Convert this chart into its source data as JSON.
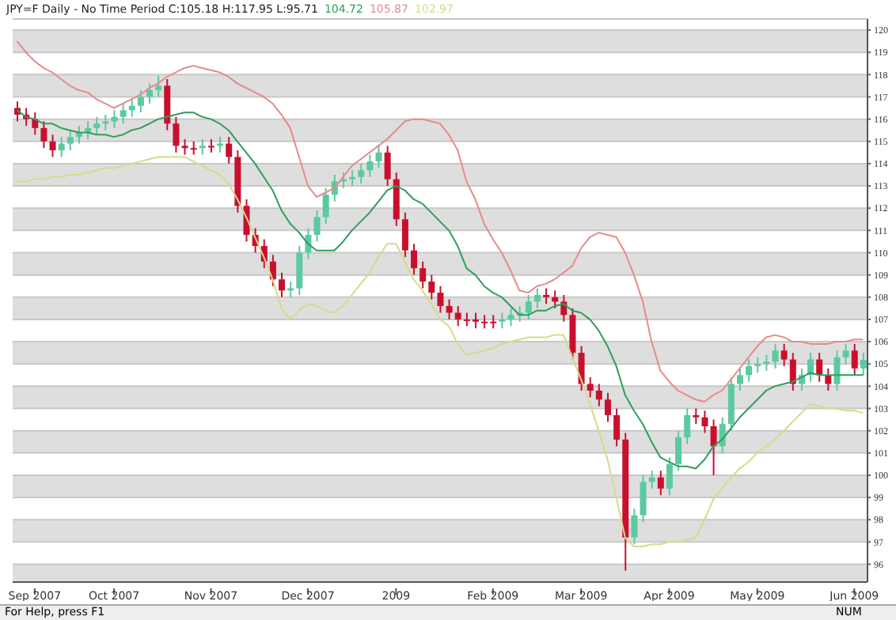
{
  "chart_data": {
    "type": "candlestick",
    "title": "JPY=F Daily - No Time Period  C:105.18 H:117.95 L:95.71",
    "legend": "top left",
    "grid": "y",
    "categories": [
      null,
      null,
      "Sep 2007",
      null,
      null,
      null,
      null,
      null,
      null,
      null,
      null,
      "Oct 2007",
      null,
      null,
      null,
      null,
      null,
      null,
      null,
      null,
      null,
      null,
      "Nov 2007",
      null,
      null,
      null,
      null,
      null,
      null,
      null,
      null,
      null,
      null,
      "Dec 2007",
      null,
      null,
      null,
      null,
      null,
      null,
      null,
      null,
      null,
      "2009",
      null,
      null,
      null,
      null,
      null,
      null,
      null,
      null,
      null,
      null,
      "Feb 2009",
      null,
      null,
      null,
      null,
      null,
      null,
      null,
      null,
      null,
      "Mar 2009",
      null,
      null,
      null,
      null,
      null,
      null,
      null,
      null,
      null,
      "Apr 2009",
      null,
      null,
      null,
      null,
      null,
      null,
      null,
      null,
      null,
      "May 2009",
      null,
      null,
      null,
      null,
      null,
      null,
      null,
      null,
      null,
      null,
      "Jun 2009",
      null
    ],
    "ylim": [
      95.2,
      120.5
    ],
    "yticks": [
      96,
      97,
      98,
      99,
      100,
      101,
      102,
      103,
      104,
      105,
      106,
      107,
      108,
      109,
      110,
      111,
      112,
      113,
      114,
      115,
      116,
      117,
      118,
      119,
      120
    ],
    "ohlc": [
      [
        116.5,
        116.8,
        115.9,
        116.2
      ],
      [
        116.2,
        116.5,
        115.7,
        116.0
      ],
      [
        116.0,
        116.3,
        115.3,
        115.6
      ],
      [
        115.6,
        115.9,
        114.7,
        115.0
      ],
      [
        115.0,
        115.3,
        114.3,
        114.6
      ],
      [
        114.6,
        115.2,
        114.3,
        114.9
      ],
      [
        114.9,
        115.5,
        114.6,
        115.2
      ],
      [
        115.2,
        115.7,
        114.9,
        115.4
      ],
      [
        115.4,
        115.9,
        115.1,
        115.6
      ],
      [
        115.6,
        116.1,
        115.3,
        115.8
      ],
      [
        115.8,
        116.2,
        115.5,
        115.9
      ],
      [
        115.9,
        116.4,
        115.6,
        116.1
      ],
      [
        116.1,
        116.7,
        115.8,
        116.4
      ],
      [
        116.4,
        116.9,
        116.1,
        116.6
      ],
      [
        116.6,
        117.3,
        116.3,
        117.0
      ],
      [
        117.0,
        117.6,
        116.7,
        117.3
      ],
      [
        117.3,
        117.95,
        117.0,
        117.5
      ],
      [
        117.5,
        117.8,
        115.5,
        115.8
      ],
      [
        115.8,
        116.1,
        114.5,
        114.8
      ],
      [
        114.8,
        115.1,
        114.4,
        114.7
      ],
      [
        114.7,
        115.0,
        114.4,
        114.7
      ],
      [
        114.7,
        115.1,
        114.4,
        114.8
      ],
      [
        114.8,
        115.1,
        114.5,
        114.8
      ],
      [
        114.8,
        115.2,
        114.5,
        114.9
      ],
      [
        114.9,
        115.2,
        114.0,
        114.3
      ],
      [
        114.3,
        114.6,
        111.8,
        112.1
      ],
      [
        112.1,
        112.4,
        110.5,
        110.8
      ],
      [
        110.8,
        111.1,
        110.0,
        110.3
      ],
      [
        110.3,
        110.6,
        109.3,
        109.6
      ],
      [
        109.6,
        109.9,
        108.5,
        108.8
      ],
      [
        108.8,
        109.1,
        108.0,
        108.3
      ],
      [
        108.3,
        108.7,
        108.0,
        108.4
      ],
      [
        108.4,
        110.3,
        108.1,
        110.0
      ],
      [
        110.0,
        111.1,
        109.7,
        110.8
      ],
      [
        110.8,
        111.9,
        110.5,
        111.6
      ],
      [
        111.6,
        112.9,
        111.3,
        112.6
      ],
      [
        112.6,
        113.5,
        112.3,
        113.2
      ],
      [
        113.2,
        113.6,
        112.9,
        113.3
      ],
      [
        113.3,
        113.7,
        113.0,
        113.4
      ],
      [
        113.4,
        114.0,
        113.1,
        113.7
      ],
      [
        113.7,
        114.4,
        113.4,
        114.1
      ],
      [
        114.1,
        114.8,
        113.8,
        114.5
      ],
      [
        114.5,
        114.8,
        113.0,
        113.3
      ],
      [
        113.3,
        113.6,
        111.2,
        111.5
      ],
      [
        111.5,
        111.8,
        109.8,
        110.1
      ],
      [
        110.1,
        110.4,
        109.0,
        109.3
      ],
      [
        109.3,
        109.6,
        108.4,
        108.7
      ],
      [
        108.7,
        109.0,
        107.9,
        108.2
      ],
      [
        108.2,
        108.5,
        107.3,
        107.6
      ],
      [
        107.6,
        107.9,
        107.0,
        107.3
      ],
      [
        107.3,
        107.6,
        106.7,
        107.0
      ],
      [
        107.0,
        107.3,
        106.7,
        107.0
      ],
      [
        107.0,
        107.3,
        106.6,
        106.9
      ],
      [
        106.9,
        107.2,
        106.6,
        106.9
      ],
      [
        106.9,
        107.2,
        106.6,
        106.9
      ],
      [
        106.9,
        107.3,
        106.6,
        107.0
      ],
      [
        107.0,
        107.5,
        106.7,
        107.2
      ],
      [
        107.2,
        107.6,
        106.9,
        107.3
      ],
      [
        107.3,
        108.1,
        107.0,
        107.8
      ],
      [
        107.8,
        108.4,
        107.5,
        108.1
      ],
      [
        108.1,
        108.4,
        107.7,
        108.0
      ],
      [
        108.0,
        108.3,
        107.5,
        107.8
      ],
      [
        107.8,
        108.1,
        106.9,
        107.2
      ],
      [
        107.2,
        107.5,
        105.2,
        105.5
      ],
      [
        105.5,
        105.8,
        103.8,
        104.1
      ],
      [
        104.1,
        104.4,
        103.5,
        103.8
      ],
      [
        103.8,
        104.1,
        103.1,
        103.4
      ],
      [
        103.4,
        103.7,
        102.4,
        102.7
      ],
      [
        102.7,
        103.0,
        101.3,
        101.6
      ],
      [
        101.6,
        101.9,
        95.71,
        97.2
      ],
      [
        97.2,
        98.5,
        96.9,
        98.2
      ],
      [
        98.2,
        100.0,
        97.9,
        99.7
      ],
      [
        99.7,
        100.2,
        99.4,
        99.9
      ],
      [
        99.9,
        100.2,
        99.1,
        99.4
      ],
      [
        99.4,
        100.8,
        99.1,
        100.5
      ],
      [
        100.5,
        102.0,
        100.2,
        101.7
      ],
      [
        101.7,
        103.0,
        101.4,
        102.7
      ],
      [
        102.7,
        103.0,
        102.3,
        102.6
      ],
      [
        102.6,
        102.9,
        101.9,
        102.2
      ],
      [
        102.2,
        102.5,
        100.0,
        101.3
      ],
      [
        101.3,
        102.6,
        101.0,
        102.3
      ],
      [
        102.3,
        104.4,
        102.0,
        104.1
      ],
      [
        104.1,
        104.8,
        103.8,
        104.5
      ],
      [
        104.5,
        105.2,
        104.2,
        104.9
      ],
      [
        104.9,
        105.3,
        104.6,
        105.0
      ],
      [
        105.0,
        105.4,
        104.7,
        105.1
      ],
      [
        105.1,
        105.9,
        104.8,
        105.6
      ],
      [
        105.6,
        105.9,
        104.9,
        105.2
      ],
      [
        105.2,
        105.5,
        103.8,
        104.1
      ],
      [
        104.1,
        104.8,
        103.8,
        104.5
      ],
      [
        104.5,
        105.5,
        104.2,
        105.2
      ],
      [
        105.2,
        105.5,
        104.2,
        104.5
      ],
      [
        104.5,
        104.8,
        103.8,
        104.1
      ],
      [
        104.1,
        105.6,
        103.8,
        105.3
      ],
      [
        105.3,
        105.9,
        105.0,
        105.6
      ],
      [
        105.6,
        105.9,
        104.5,
        104.8
      ],
      [
        104.8,
        105.5,
        104.5,
        105.18
      ]
    ],
    "colors": [
      "#c8102e",
      "#c8102e",
      "#c8102e",
      "#c8102e",
      "#c8102e",
      "#5cc9a0",
      "#5cc9a0",
      "#5cc9a0",
      "#5cc9a0",
      "#5cc9a0",
      "#5cc9a0",
      "#5cc9a0",
      "#5cc9a0",
      "#5cc9a0",
      "#5cc9a0",
      "#5cc9a0",
      "#5cc9a0",
      "#c8102e",
      "#c8102e",
      "#c8102e",
      "#c8102e",
      "#5cc9a0",
      "#c8102e",
      "#5cc9a0",
      "#c8102e",
      "#c8102e",
      "#c8102e",
      "#c8102e",
      "#c8102e",
      "#c8102e",
      "#c8102e",
      "#5cc9a0",
      "#5cc9a0",
      "#5cc9a0",
      "#5cc9a0",
      "#5cc9a0",
      "#5cc9a0",
      "#5cc9a0",
      "#5cc9a0",
      "#5cc9a0",
      "#5cc9a0",
      "#5cc9a0",
      "#c8102e",
      "#c8102e",
      "#c8102e",
      "#c8102e",
      "#c8102e",
      "#c8102e",
      "#c8102e",
      "#c8102e",
      "#c8102e",
      "#c8102e",
      "#c8102e",
      "#c8102e",
      "#c8102e",
      "#5cc9a0",
      "#5cc9a0",
      "#5cc9a0",
      "#5cc9a0",
      "#5cc9a0",
      "#c8102e",
      "#c8102e",
      "#c8102e",
      "#c8102e",
      "#c8102e",
      "#c8102e",
      "#c8102e",
      "#c8102e",
      "#c8102e",
      "#c8102e",
      "#5cc9a0",
      "#5cc9a0",
      "#5cc9a0",
      "#c8102e",
      "#5cc9a0",
      "#5cc9a0",
      "#5cc9a0",
      "#c8102e",
      "#c8102e",
      "#c8102e",
      "#5cc9a0",
      "#5cc9a0",
      "#5cc9a0",
      "#5cc9a0",
      "#5cc9a0",
      "#5cc9a0",
      "#5cc9a0",
      "#c8102e",
      "#c8102e",
      "#5cc9a0",
      "#5cc9a0",
      "#c8102e",
      "#c8102e",
      "#5cc9a0",
      "#5cc9a0",
      "#c8102e",
      "#5cc9a0"
    ],
    "series": [
      {
        "type": "line",
        "name": "104.72",
        "color": "#2e9e5a",
        "values": [
          116.4,
          116.1,
          116.0,
          115.8,
          115.8,
          115.6,
          115.5,
          115.4,
          115.4,
          115.3,
          115.3,
          115.2,
          115.3,
          115.5,
          115.6,
          115.8,
          116.0,
          116.1,
          116.2,
          116.3,
          116.3,
          116.1,
          116.0,
          115.8,
          115.5,
          115.0,
          114.5,
          114.0,
          113.4,
          112.8,
          111.9,
          111.3,
          110.9,
          110.4,
          110.1,
          110.1,
          110.1,
          110.5,
          111.0,
          111.4,
          111.8,
          112.3,
          112.8,
          113.0,
          112.8,
          112.4,
          112.2,
          111.8,
          111.4,
          111.0,
          110.3,
          109.3,
          109.0,
          108.5,
          108.2,
          108.0,
          107.6,
          107.2,
          107.2,
          107.4,
          107.4,
          107.6,
          107.7,
          107.4,
          107.3,
          107.0,
          106.5,
          105.8,
          104.9,
          103.6,
          102.9,
          102.3,
          101.5,
          100.8,
          100.6,
          100.4,
          100.4,
          100.3,
          100.7,
          101.3,
          101.6,
          102.1,
          102.6,
          103.0,
          103.4,
          103.8,
          104.0,
          104.1,
          104.2,
          104.4,
          104.6,
          104.5,
          104.5,
          104.5,
          104.5,
          104.5,
          104.5
        ]
      },
      {
        "type": "line",
        "name": "105.87",
        "color": "#e88a8a",
        "values": [
          119.5,
          119.0,
          118.6,
          118.3,
          118.1,
          117.8,
          117.5,
          117.3,
          117.2,
          116.9,
          116.7,
          116.5,
          116.7,
          116.9,
          117.1,
          117.4,
          117.6,
          117.9,
          118.1,
          118.3,
          118.4,
          118.3,
          118.2,
          118.1,
          117.9,
          117.6,
          117.4,
          117.2,
          117.0,
          116.7,
          116.2,
          115.6,
          114.3,
          113.0,
          112.5,
          112.7,
          112.9,
          113.4,
          113.9,
          114.2,
          114.5,
          114.8,
          115.1,
          115.5,
          115.9,
          116.0,
          116.0,
          115.9,
          115.8,
          115.3,
          114.6,
          113.2,
          112.4,
          111.3,
          110.6,
          110.0,
          109.2,
          108.3,
          108.2,
          108.5,
          108.6,
          108.8,
          109.1,
          109.4,
          110.2,
          110.7,
          110.9,
          110.8,
          110.7,
          110.0,
          109.0,
          107.8,
          106.0,
          104.7,
          104.2,
          103.8,
          103.6,
          103.4,
          103.3,
          103.6,
          103.8,
          104.3,
          104.8,
          105.3,
          105.8,
          106.2,
          106.3,
          106.2,
          106.0,
          106.0,
          105.9,
          105.9,
          105.9,
          106.0,
          106.0,
          106.1,
          106.1
        ]
      },
      {
        "type": "line",
        "name": "102.97",
        "color": "#d9d98a",
        "values": [
          113.2,
          113.2,
          113.3,
          113.3,
          113.4,
          113.4,
          113.5,
          113.5,
          113.6,
          113.7,
          113.8,
          113.8,
          113.9,
          114.0,
          114.1,
          114.2,
          114.3,
          114.3,
          114.3,
          114.3,
          114.1,
          113.9,
          113.7,
          113.5,
          113.1,
          112.4,
          111.6,
          110.7,
          109.8,
          108.8,
          107.5,
          107.0,
          107.4,
          107.7,
          107.6,
          107.4,
          107.3,
          107.6,
          108.1,
          108.6,
          109.1,
          109.8,
          110.4,
          110.4,
          109.6,
          108.8,
          108.3,
          107.7,
          107.0,
          106.7,
          105.9,
          105.4,
          105.5,
          105.6,
          105.7,
          105.9,
          106.0,
          106.1,
          106.2,
          106.2,
          106.2,
          106.3,
          106.3,
          105.3,
          104.3,
          103.2,
          102.0,
          100.7,
          99.0,
          97.2,
          96.8,
          96.8,
          96.9,
          96.9,
          97.0,
          97.0,
          97.1,
          97.2,
          98.0,
          98.9,
          99.4,
          99.9,
          100.3,
          100.6,
          101.0,
          101.3,
          101.6,
          102.0,
          102.4,
          102.8,
          103.2,
          103.1,
          103.0,
          103.0,
          102.9,
          102.9,
          102.8
        ]
      }
    ],
    "annotations": [
      "For Help, press F1",
      "NUM"
    ]
  }
}
